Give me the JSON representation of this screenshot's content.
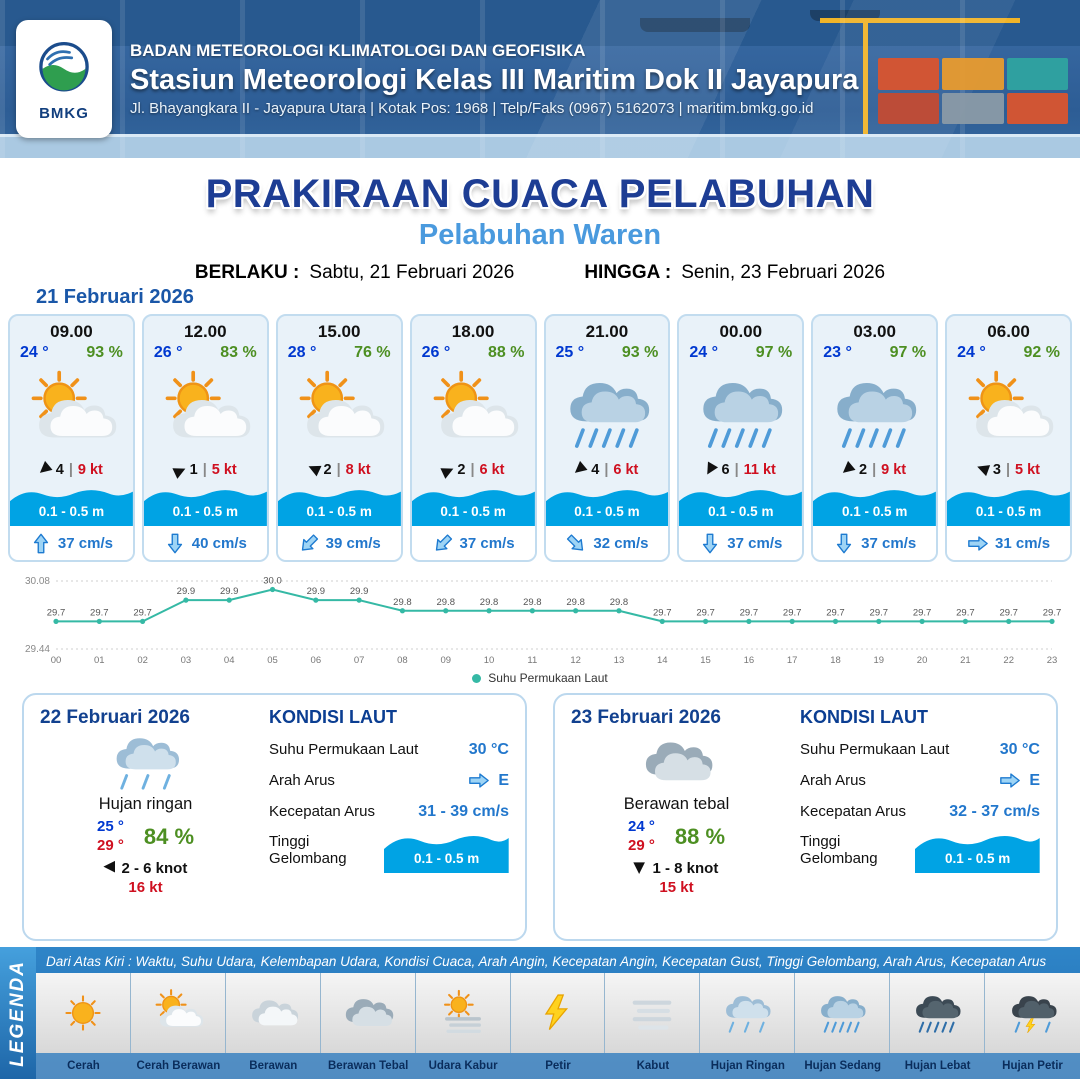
{
  "header": {
    "logo_text": "BMKG",
    "org": "BADAN METEOROLOGI KLIMATOLOGI DAN GEOFISIKA",
    "station": "Stasiun Meteorologi Kelas III Maritim Dok II Jayapura",
    "address": "Jl. Bhayangkara II - Jayapura Utara | Kotak Pos: 1968 | Telp/Faks (0967) 5162073 | maritim.bmkg.go.id"
  },
  "title": {
    "main": "PRAKIRAAN CUACA PELABUHAN",
    "port": "Pelabuhan Waren",
    "berlaku_label": "BERLAKU :",
    "berlaku_value": "Sabtu, 21 Februari 2026",
    "hingga_label": "HINGGA :",
    "hingga_value": "Senin, 23 Februari 2026"
  },
  "glyphs": {
    "wind_arrow": "▶",
    "separator": "|"
  },
  "day1": {
    "date": "21 Februari 2026",
    "cards": [
      {
        "time": "09.00",
        "temp": "24 °",
        "rh": "93 %",
        "icon": "cerah-berawan",
        "wind_speed": "4",
        "wind_gust": "9 kt",
        "wind_deg": 140,
        "wave": "0.1 - 0.5 m",
        "current": "37 cm/s",
        "current_deg": 270
      },
      {
        "time": "12.00",
        "temp": "26 °",
        "rh": "83 %",
        "icon": "cerah-berawan",
        "wind_speed": "1",
        "wind_gust": "5 kt",
        "wind_deg": 335,
        "wave": "0.1 - 0.5 m",
        "current": "40 cm/s",
        "current_deg": 90
      },
      {
        "time": "15.00",
        "temp": "28 °",
        "rh": "76 %",
        "icon": "cerah-berawan",
        "wind_speed": "2",
        "wind_gust": "8 kt",
        "wind_deg": 205,
        "wave": "0.1 - 0.5 m",
        "current": "39 cm/s",
        "current_deg": 135
      },
      {
        "time": "18.00",
        "temp": "26 °",
        "rh": "88 %",
        "icon": "cerah-berawan",
        "wind_speed": "2",
        "wind_gust": "6 kt",
        "wind_deg": 335,
        "wave": "0.1 - 0.5 m",
        "current": "37 cm/s",
        "current_deg": 135
      },
      {
        "time": "21.00",
        "temp": "25 °",
        "rh": "93 %",
        "icon": "hujan-sedang",
        "wind_speed": "4",
        "wind_gust": "6 kt",
        "wind_deg": 140,
        "wave": "0.1 - 0.5 m",
        "current": "32 cm/s",
        "current_deg": 45
      },
      {
        "time": "00.00",
        "temp": "24 °",
        "rh": "97 %",
        "icon": "hujan-sedang",
        "wind_speed": "6",
        "wind_gust": "11 kt",
        "wind_deg": 120,
        "wave": "0.1 - 0.5 m",
        "current": "37 cm/s",
        "current_deg": 90
      },
      {
        "time": "03.00",
        "temp": "23 °",
        "rh": "97 %",
        "icon": "hujan-sedang",
        "wind_speed": "2",
        "wind_gust": "9 kt",
        "wind_deg": 140,
        "wave": "0.1 - 0.5 m",
        "current": "37 cm/s",
        "current_deg": 90
      },
      {
        "time": "06.00",
        "temp": "24 °",
        "rh": "92 %",
        "icon": "cerah-berawan",
        "wind_speed": "3",
        "wind_gust": "5 kt",
        "wind_deg": 200,
        "wave": "0.1 - 0.5 m",
        "current": "31 cm/s",
        "current_deg": 0
      }
    ]
  },
  "chart_data": {
    "type": "line",
    "series_name": "Suhu Permukaan Laut",
    "x": [
      "00",
      "01",
      "02",
      "03",
      "04",
      "05",
      "06",
      "07",
      "08",
      "09",
      "10",
      "11",
      "12",
      "13",
      "14",
      "15",
      "16",
      "17",
      "18",
      "19",
      "20",
      "21",
      "22",
      "23"
    ],
    "values": [
      29.7,
      29.7,
      29.7,
      29.9,
      29.9,
      30.0,
      29.9,
      29.9,
      29.8,
      29.8,
      29.8,
      29.8,
      29.8,
      29.8,
      29.7,
      29.7,
      29.7,
      29.7,
      29.7,
      29.7,
      29.7,
      29.7,
      29.7,
      29.7
    ],
    "ylim": [
      29.44,
      30.08
    ],
    "line_color": "#35b9a5",
    "legend_position": "bottom",
    "grid": "dotted-top-bottom"
  },
  "daily": [
    {
      "date": "22 Februari 2026",
      "icon": "hujan-ringan",
      "condition": "Hujan ringan",
      "temp_min": "25 °",
      "temp_max": "29 °",
      "rh": "84 %",
      "wind_range": "2 - 6 knot",
      "wind_deg": 180,
      "gust": "16 kt",
      "sea": {
        "title": "KONDISI LAUT",
        "sst_label": "Suhu Permukaan Laut",
        "sst": "30 °C",
        "dir_label": "Arah Arus",
        "dir": "E",
        "dir_deg": 0,
        "speed_label": "Kecepatan Arus",
        "speed": "31 - 39 cm/s",
        "wave_label": "Tinggi Gelombang",
        "wave": "0.1 - 0.5 m"
      }
    },
    {
      "date": "23 Februari 2026",
      "icon": "berawan-tebal",
      "condition": "Berawan tebal",
      "temp_min": "24 °",
      "temp_max": "29 °",
      "rh": "88 %",
      "wind_range": "1 - 8 knot",
      "wind_deg": 90,
      "gust": "15 kt",
      "sea": {
        "title": "KONDISI LAUT",
        "sst_label": "Suhu Permukaan Laut",
        "sst": "30 °C",
        "dir_label": "Arah Arus",
        "dir": "E",
        "dir_deg": 0,
        "speed_label": "Kecepatan Arus",
        "speed": "32 - 37 cm/s",
        "wave_label": "Tinggi Gelombang",
        "wave": "0.1 - 0.5 m"
      }
    }
  ],
  "legend": {
    "title": "LEGENDA",
    "note": "Dari Atas Kiri : Waktu, Suhu Udara, Kelembapan Udara, Kondisi Cuaca, Arah Angin, Kecepatan Angin, Kecepatan Gust, Tinggi Gelombang, Arah Arus, Kecepatan Arus",
    "items": [
      {
        "label": "Cerah",
        "icon": "cerah"
      },
      {
        "label": "Cerah Berawan",
        "icon": "cerah-berawan"
      },
      {
        "label": "Berawan",
        "icon": "berawan"
      },
      {
        "label": "Berawan Tebal",
        "icon": "berawan-tebal"
      },
      {
        "label": "Udara Kabur",
        "icon": "udara-kabur"
      },
      {
        "label": "Petir",
        "icon": "petir"
      },
      {
        "label": "Kabut",
        "icon": "kabut"
      },
      {
        "label": "Hujan Ringan",
        "icon": "hujan-ringan"
      },
      {
        "label": "Hujan Sedang",
        "icon": "hujan-sedang"
      },
      {
        "label": "Hujan Lebat",
        "icon": "hujan-lebat"
      },
      {
        "label": "Hujan Petir",
        "icon": "hujan-petir"
      }
    ]
  }
}
